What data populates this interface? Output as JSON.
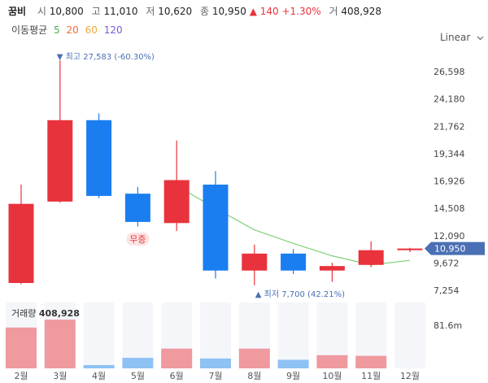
{
  "header": {
    "name": "꿈비",
    "open_label": "시",
    "open": "10,800",
    "high_label": "고",
    "high": "11,010",
    "low_label": "저",
    "low": "10,620",
    "close_label": "종",
    "close": "10,950",
    "change": "▲ 140 +1.30%",
    "volume_label": "거",
    "volume": "408,928"
  },
  "ma_legend": {
    "title": "이동평균",
    "periods": [
      {
        "label": "5",
        "color": "#4caf50"
      },
      {
        "label": "20",
        "color": "#f06a3b"
      },
      {
        "label": "60",
        "color": "#f3a73a"
      },
      {
        "label": "120",
        "color": "#7a5cd6"
      }
    ]
  },
  "scale_button": {
    "label": "Linear",
    "icon": "chevron-down-icon"
  },
  "colors": {
    "up": "#e8333c",
    "down": "#1a7ef0",
    "ma5": "#7fd17a",
    "up_vol": "#ef9a9f",
    "down_vol": "#8ec2f5",
    "highlight": "#4a6fb4"
  },
  "chart_data": {
    "type": "candlestick",
    "categories": [
      "2월",
      "3월",
      "4월",
      "5월",
      "6월",
      "7월",
      "8월",
      "9월",
      "10월",
      "11월",
      "12월"
    ],
    "candles": [
      {
        "open": 7900,
        "high": 16600,
        "low": 7800,
        "close": 14900
      },
      {
        "open": 15100,
        "high": 27583,
        "low": 15000,
        "close": 22300
      },
      {
        "open": 22300,
        "high": 22900,
        "low": 15400,
        "close": 15600
      },
      {
        "open": 15800,
        "high": 16400,
        "low": 12900,
        "close": 13300
      },
      {
        "open": 13200,
        "high": 20500,
        "low": 12500,
        "close": 17000
      },
      {
        "open": 16600,
        "high": 17800,
        "low": 8300,
        "close": 9000
      },
      {
        "open": 9000,
        "high": 11300,
        "low": 7700,
        "close": 10500
      },
      {
        "open": 10500,
        "high": 10900,
        "low": 8700,
        "close": 9000
      },
      {
        "open": 9000,
        "high": 9700,
        "low": 8000,
        "close": 9400
      },
      {
        "open": 9500,
        "high": 11600,
        "low": 9300,
        "close": 10800
      },
      {
        "open": 10800,
        "high": 11010,
        "low": 10620,
        "close": 10950
      }
    ],
    "ma5": [
      null,
      null,
      null,
      null,
      16500,
      14500,
      12600,
      11400,
      10300,
      9500,
      9900
    ],
    "volume": [
      0.62,
      0.74,
      0.05,
      0.16,
      0.3,
      0.15,
      0.3,
      0.13,
      0.2,
      0.19,
      0.0
    ],
    "volume_label": "거래량",
    "volume_value": "408,928",
    "volume_tick": "81.6m",
    "y_ticks": [
      "26,598",
      "24,180",
      "21,762",
      "19,344",
      "16,926",
      "14,508",
      "12,090",
      "9,672",
      "7,254"
    ],
    "y_tick_values": [
      26598,
      24180,
      21762,
      19344,
      16926,
      14508,
      12090,
      9672,
      7254
    ],
    "ylim": [
      5700,
      28800
    ],
    "last_price_label": "10,950",
    "last_price": 10950,
    "annotations": {
      "high": {
        "text": "▼ 최고 27,583 (-60.30%)",
        "value": 27583,
        "index": 1
      },
      "low": {
        "text": "▲ 최저 7,700 (42.21%)",
        "value": 7700,
        "index": 6
      },
      "mujeung": {
        "text": "무증",
        "index": 3
      }
    }
  }
}
